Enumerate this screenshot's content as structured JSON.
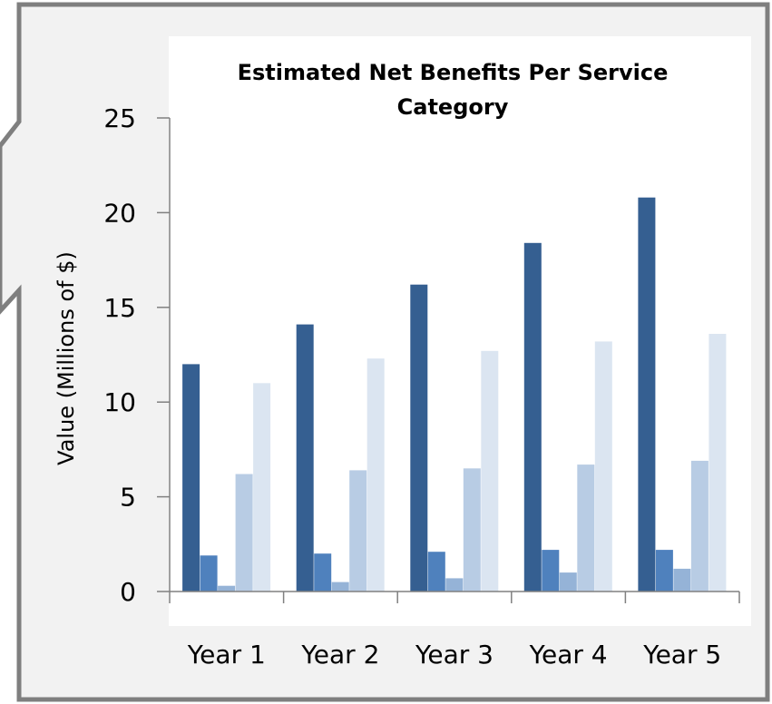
{
  "colors": {
    "background": "#ffffff",
    "callout_fill": "#f2f2f2",
    "callout_border": "#7f7f7f",
    "axis": "#808080",
    "series": [
      "#355f91",
      "#4f81bd",
      "#95b3d7",
      "#b8cce4",
      "#dbe5f1"
    ]
  },
  "chart_data": {
    "type": "bar",
    "title": "Estimated Net Benefits Per Service Category",
    "title_lines": [
      "Estimated Net Benefits Per Service",
      "Category"
    ],
    "xlabel": "",
    "ylabel": "Value (Millions of $)",
    "categories": [
      "Year 1",
      "Year 2",
      "Year 3",
      "Year 4",
      "Year 5"
    ],
    "ylim": [
      0,
      25
    ],
    "yticks": [
      0,
      5,
      10,
      15,
      20,
      25
    ],
    "grid": false,
    "legend": "none",
    "series": [
      {
        "values": [
          12.0,
          14.1,
          16.2,
          18.4,
          20.8
        ]
      },
      {
        "values": [
          1.9,
          2.0,
          2.1,
          2.2,
          2.2
        ]
      },
      {
        "values": [
          0.3,
          0.5,
          0.7,
          1.0,
          1.2
        ]
      },
      {
        "values": [
          6.2,
          6.4,
          6.5,
          6.7,
          6.9
        ]
      },
      {
        "values": [
          11.0,
          12.3,
          12.7,
          13.2,
          13.6
        ]
      }
    ]
  }
}
